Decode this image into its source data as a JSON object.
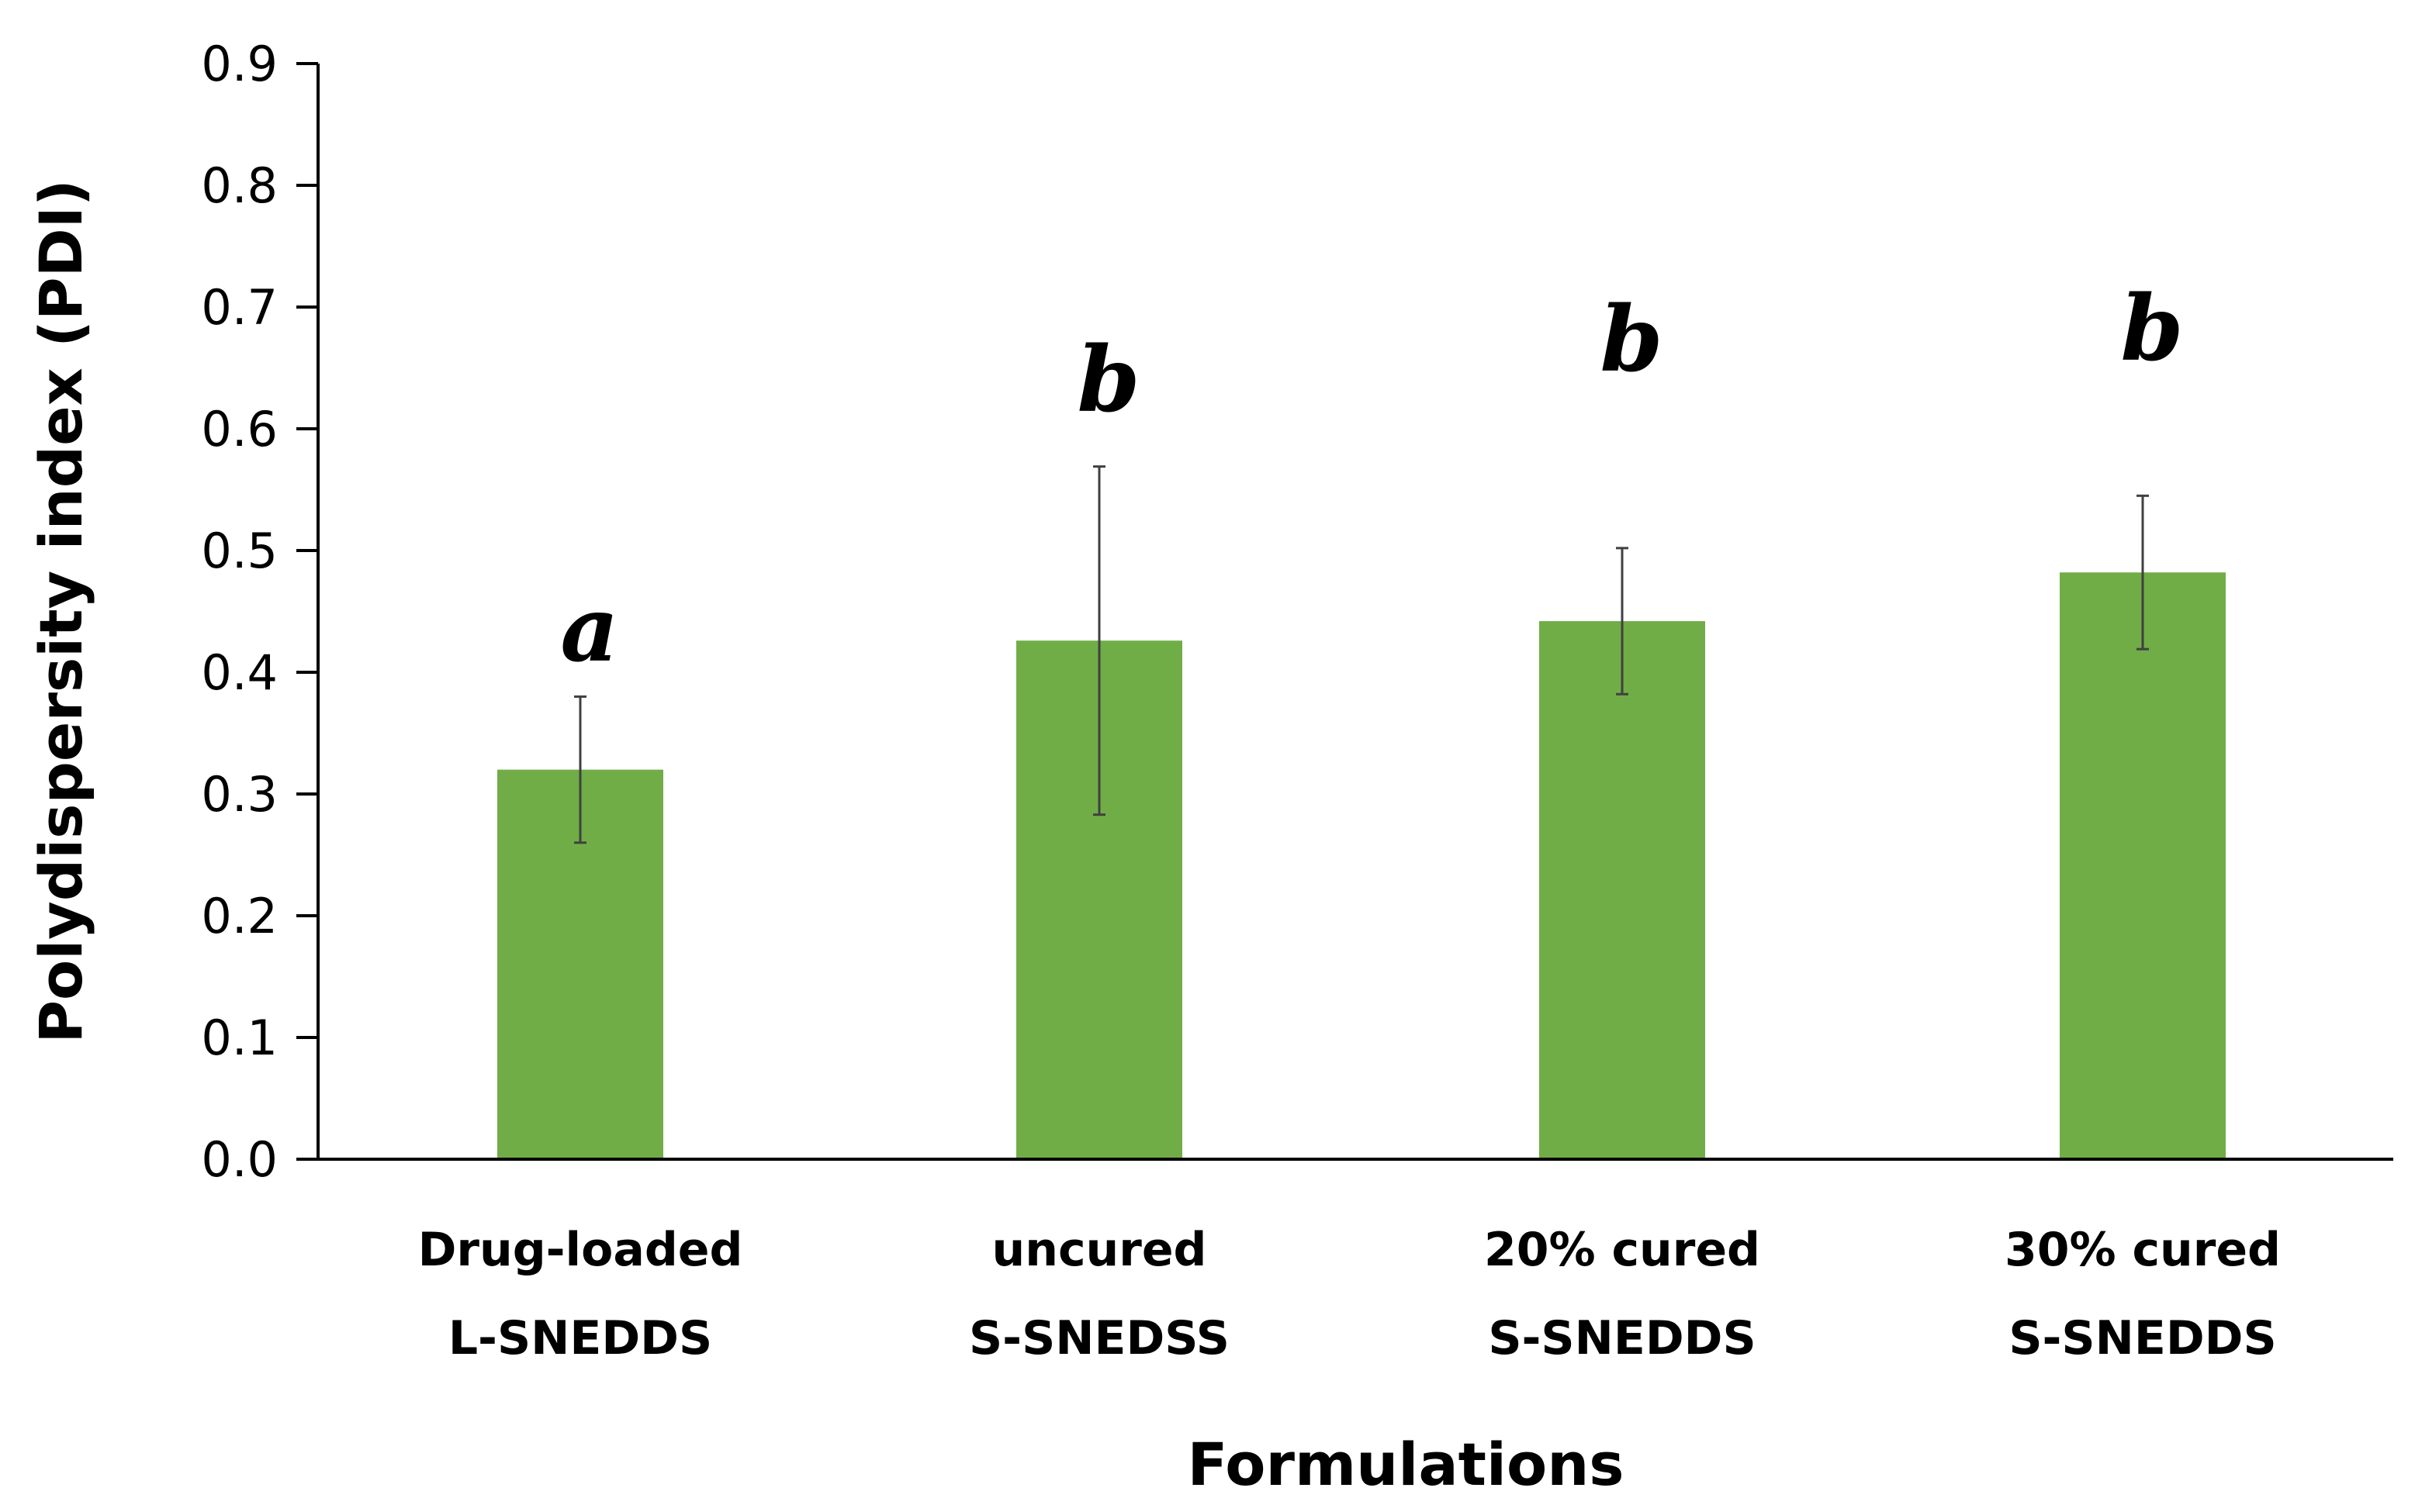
{
  "chart_data": {
    "type": "bar",
    "title": "",
    "xlabel": "Formulations",
    "ylabel": "Polydispersity index (PDI)",
    "ylim": [
      0,
      0.9
    ],
    "y_ticks": [
      "0.0",
      "0.1",
      "0.2",
      "0.3",
      "0.4",
      "0.5",
      "0.6",
      "0.7",
      "0.8",
      "0.9"
    ],
    "grid": false,
    "bar_color": "#70AD47",
    "categories": [
      [
        "Drug-loaded",
        "L-SNEDDS"
      ],
      [
        "uncured",
        "S-SNEDSS"
      ],
      [
        "20% cured",
        "S-SNEDDS"
      ],
      [
        "30% cured",
        "S-SNEDDS"
      ]
    ],
    "values": [
      0.32,
      0.426,
      0.442,
      0.482
    ],
    "error": [
      0.06,
      0.143,
      0.06,
      0.063
    ],
    "annotations": [
      "a",
      "b",
      "b",
      "b"
    ]
  }
}
